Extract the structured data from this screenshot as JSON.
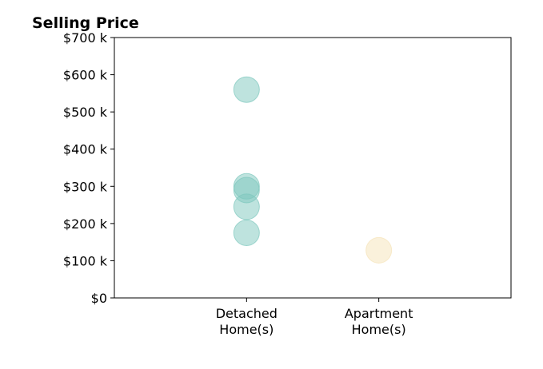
{
  "chart_data": {
    "type": "scatter",
    "title": "Selling Price",
    "xlabel": "",
    "ylabel": "",
    "categories": [
      "Detached\nHome(s)",
      "Apartment\nHome(s)"
    ],
    "xlim": [
      -1,
      2
    ],
    "ylim": [
      0,
      700000
    ],
    "y_ticks": [
      0,
      100000,
      200000,
      300000,
      400000,
      500000,
      600000,
      700000
    ],
    "y_tick_labels": [
      "$0",
      "$100 k",
      "$200 k",
      "$300 k",
      "$400 k",
      "$500 k",
      "$600 k",
      "$700 k"
    ],
    "grid": false,
    "series": [
      {
        "category": "Detached\nHome(s)",
        "color": "#7ec8bd",
        "values": [
          560000,
          300000,
          290000,
          245000,
          175000
        ]
      },
      {
        "category": "Apartment\nHome(s)",
        "color": "#f5e3b8",
        "values": [
          128000
        ]
      }
    ]
  }
}
